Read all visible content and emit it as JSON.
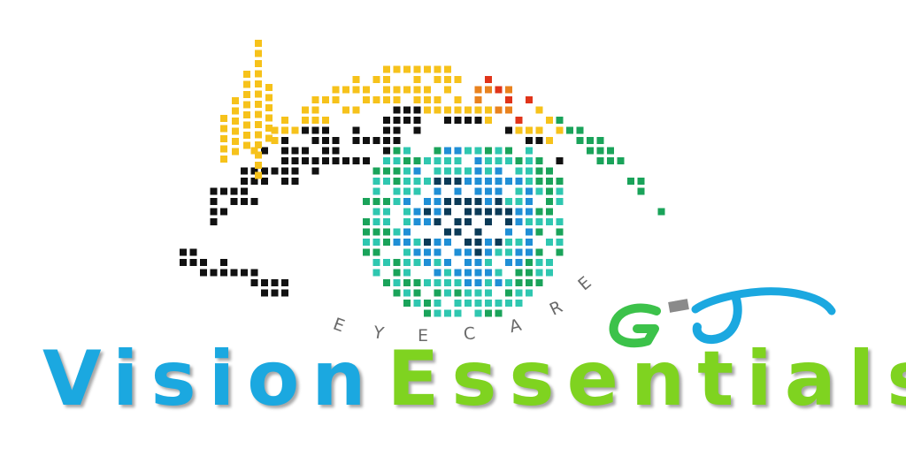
{
  "logo": {
    "eyecare_letters": [
      "E",
      "Y",
      "E",
      "C",
      "A",
      "R",
      "E"
    ],
    "wordmark_part1": "Vision",
    "wordmark_part2": "Essentials"
  },
  "colors": {
    "lash_yellow": "#f6c21b",
    "lash_orange": "#e9821e",
    "lash_red": "#e0341a",
    "lash_black": "#111111",
    "iris_green": "#1aa35a",
    "iris_teal": "#2fc7b0",
    "iris_blue": "#1f8fd6",
    "pupil": "#0b3a57",
    "word_blue": "#1ba8e0",
    "word_green": "#7fd320",
    "glasses_green": "#3cc24a",
    "glasses_blue": "#1ba8e0"
  },
  "icons": [
    "pixel-eye-icon",
    "glasses-icon"
  ]
}
